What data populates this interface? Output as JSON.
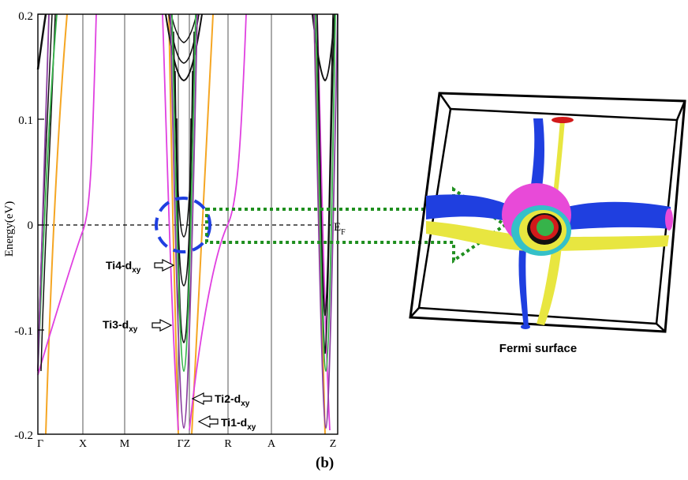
{
  "plot": {
    "ylabel": "Energy(eV)",
    "y_ticks": [
      "0.2",
      "0.1",
      "0",
      "-0.1",
      "-0.2"
    ],
    "k_labels": [
      "Γ",
      "X",
      "M",
      "ΓZ",
      "R",
      "A",
      "Z"
    ],
    "fermi_label": {
      "main": "E",
      "sub": "F"
    },
    "ylim": [
      -0.2,
      0.2
    ]
  },
  "annotations": [
    {
      "main": "Ti4-d",
      "sub": "xy"
    },
    {
      "main": "Ti3-d",
      "sub": "xy"
    },
    {
      "main": "Ti2-d",
      "sub": "xy"
    },
    {
      "main": "Ti1-d",
      "sub": "xy"
    }
  ],
  "annotation_energies": [
    -0.038,
    -0.094,
    -0.165,
    -0.183
  ],
  "fermi_surface": {
    "label": "Fermi surface"
  },
  "caption": "(b)",
  "colors": {
    "ti1": "#8b3fa0",
    "ti2": "#36b34a",
    "magenta": "#e040e0",
    "orange": "#f5a623",
    "black_band": "#111111",
    "blue_region": "#1f3fe0",
    "yellow_region": "#e8e640",
    "green_arrow": "#1f8f1f",
    "cyan_pocket": "#35c0c8",
    "pink_pocket": "#e84ad8",
    "red_pocket": "#d21a1a"
  }
}
